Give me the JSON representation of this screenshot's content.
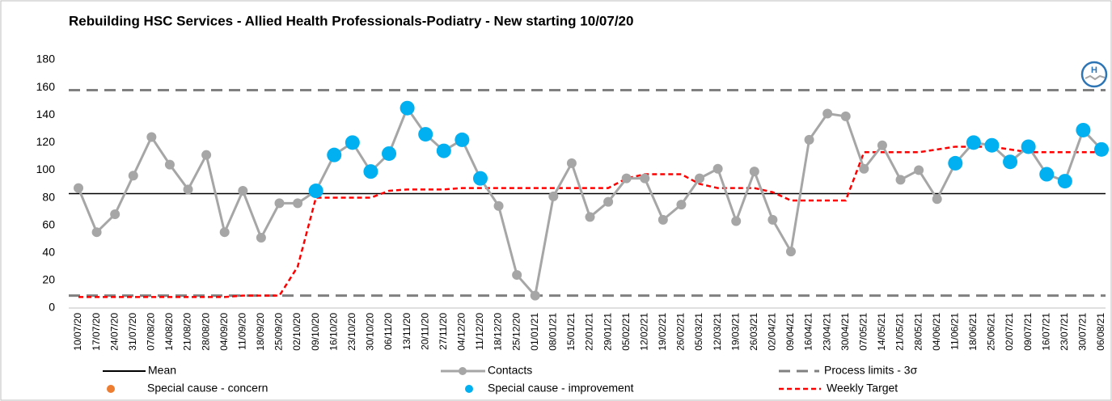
{
  "chart_data": {
    "type": "line",
    "title": "Rebuilding HSC Services - Allied Health Professionals-Podiatry - New starting 10/07/20",
    "categories": [
      "10/07/20",
      "17/07/20",
      "24/07/20",
      "31/07/20",
      "07/08/20",
      "14/08/20",
      "21/08/20",
      "28/08/20",
      "04/09/20",
      "11/09/20",
      "18/09/20",
      "25/09/20",
      "02/10/20",
      "09/10/20",
      "16/10/20",
      "23/10/20",
      "30/10/20",
      "06/11/20",
      "13/11/20",
      "20/11/20",
      "27/11/20",
      "04/12/20",
      "11/12/20",
      "18/12/20",
      "25/12/20",
      "01/01/21",
      "08/01/21",
      "15/01/21",
      "22/01/21",
      "29/01/21",
      "05/02/21",
      "12/02/21",
      "19/02/21",
      "26/02/21",
      "05/03/21",
      "12/03/21",
      "19/03/21",
      "26/03/21",
      "02/04/21",
      "09/04/21",
      "16/04/21",
      "23/04/21",
      "30/04/21",
      "07/05/21",
      "14/05/21",
      "21/05/21",
      "28/05/21",
      "04/06/21",
      "11/06/21",
      "18/06/21",
      "25/06/21",
      "02/07/21",
      "09/07/21",
      "16/07/21",
      "23/07/21",
      "30/07/21",
      "06/08/21"
    ],
    "series": [
      {
        "name": "Contacts",
        "color": "#a6a6a6",
        "values": [
          87,
          55,
          68,
          96,
          124,
          104,
          86,
          111,
          55,
          85,
          51,
          76,
          76,
          85,
          111,
          120,
          99,
          112,
          145,
          126,
          114,
          122,
          94,
          74,
          24,
          9,
          81,
          105,
          66,
          77,
          94,
          94,
          64,
          75,
          94,
          101,
          63,
          99,
          64,
          41,
          122,
          141,
          139,
          101,
          118,
          93,
          100,
          79,
          105,
          120,
          118,
          106,
          117,
          97,
          92,
          129,
          115
        ]
      },
      {
        "name": "Special cause - concern",
        "color": "#ed7d31",
        "values": [
          null,
          null,
          null,
          null,
          null,
          null,
          null,
          null,
          null,
          null,
          null,
          null,
          null,
          null,
          null,
          null,
          null,
          null,
          null,
          null,
          null,
          null,
          null,
          null,
          null,
          null,
          null,
          null,
          null,
          null,
          null,
          null,
          null,
          null,
          null,
          null,
          null,
          null,
          null,
          null,
          null,
          null,
          null,
          null,
          null,
          null,
          null,
          null,
          null,
          null,
          null,
          null,
          null,
          null,
          null,
          null,
          null
        ]
      },
      {
        "name": "Special cause  - improvement",
        "color": "#00b0f0",
        "values": [
          null,
          null,
          null,
          null,
          null,
          null,
          null,
          null,
          null,
          null,
          null,
          null,
          null,
          85,
          111,
          120,
          99,
          112,
          145,
          126,
          114,
          122,
          94,
          null,
          null,
          null,
          null,
          null,
          null,
          null,
          null,
          null,
          null,
          null,
          null,
          null,
          null,
          null,
          null,
          null,
          null,
          null,
          null,
          null,
          null,
          null,
          null,
          null,
          105,
          120,
          118,
          106,
          117,
          97,
          92,
          129,
          115
        ]
      },
      {
        "name": "Weekly Target",
        "color": "#ff0000",
        "values": [
          8,
          8,
          8,
          8,
          8,
          8,
          8,
          8,
          8,
          9,
          9,
          9,
          30,
          80,
          80,
          80,
          80,
          85,
          86,
          86,
          86,
          87,
          87,
          87,
          87,
          87,
          87,
          87,
          87,
          87,
          94,
          97,
          97,
          97,
          90,
          87,
          87,
          87,
          84,
          78,
          78,
          78,
          78,
          113,
          113,
          113,
          113,
          115,
          117,
          117,
          117,
          115,
          113,
          113,
          113,
          113,
          113
        ]
      }
    ],
    "reference_lines": [
      {
        "name": "Mean",
        "color": "#000000",
        "value": 83
      },
      {
        "name": "Process limits - 3σ",
        "color": "#808080",
        "values": [
          9,
          158
        ]
      }
    ],
    "ylim": [
      0,
      180
    ],
    "yticks": [
      0,
      20,
      40,
      60,
      80,
      100,
      120,
      140,
      160,
      180
    ]
  }
}
